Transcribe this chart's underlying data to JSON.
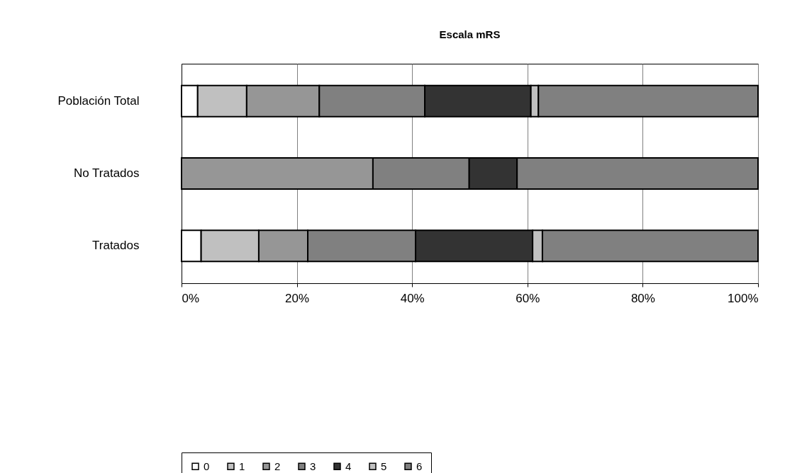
{
  "chart_data": {
    "type": "bar",
    "orientation": "horizontal",
    "stacked": true,
    "title": "Escala mRS",
    "categories": [
      "Población Total",
      "No Tratados",
      "Tratados"
    ],
    "series": [
      {
        "name": "0",
        "color": "#ffffff",
        "values": [
          2.8,
          0,
          3.4
        ]
      },
      {
        "name": "1",
        "color": "#c0c0c0",
        "values": [
          8.5,
          0,
          10.0
        ]
      },
      {
        "name": "2",
        "color": "#969696",
        "values": [
          12.6,
          33.2,
          8.5
        ]
      },
      {
        "name": "3",
        "color": "#808080",
        "values": [
          18.3,
          16.7,
          18.7
        ]
      },
      {
        "name": "4",
        "color": "#333333",
        "values": [
          18.4,
          8.3,
          20.3
        ]
      },
      {
        "name": "5",
        "color": "#c0c0c0",
        "values": [
          1.3,
          0,
          1.7
        ]
      },
      {
        "name": "6",
        "color": "#808080",
        "values": [
          38.1,
          41.8,
          37.4
        ]
      }
    ],
    "xlim": [
      0,
      100
    ],
    "xticks": [
      {
        "value": 0,
        "label": "0%"
      },
      {
        "value": 20,
        "label": "20%"
      },
      {
        "value": 40,
        "label": "40%"
      },
      {
        "value": 60,
        "label": "60%"
      },
      {
        "value": 80,
        "label": "80%"
      },
      {
        "value": 100,
        "label": "100%"
      }
    ],
    "grid": "x",
    "legend": "bottom"
  }
}
